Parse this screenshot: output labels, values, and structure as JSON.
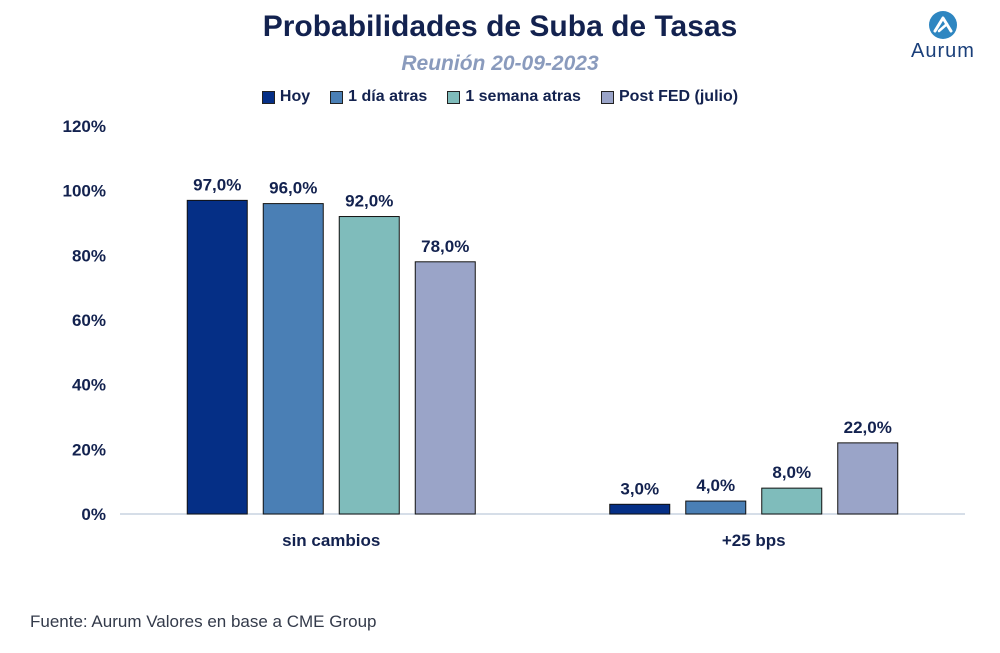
{
  "header": {
    "title": "Probabilidades de Suba de Tasas",
    "subtitle": "Reunión 20-09-2023"
  },
  "logo": {
    "text": "Aurum",
    "icon": "aurum-logo-icon",
    "color": "#2e86c1"
  },
  "footer": {
    "source": "Fuente: Aurum Valores en base a CME Group"
  },
  "chart_data": {
    "type": "bar",
    "title": "Probabilidades de Suba de Tasas",
    "subtitle": "Reunión 20-09-2023",
    "categories": [
      "sin cambios",
      "+25 bps"
    ],
    "series": [
      {
        "name": "Hoy",
        "values": [
          97.0,
          3.0
        ],
        "labels": [
          "97,0%",
          "3,0%"
        ],
        "color": "#052f86"
      },
      {
        "name": "1 día atras",
        "values": [
          96.0,
          4.0
        ],
        "labels": [
          "96,0%",
          "4,0%"
        ],
        "color": "#4a7fb5"
      },
      {
        "name": "1 semana atras",
        "values": [
          92.0,
          8.0
        ],
        "labels": [
          "92,0%",
          "8,0%"
        ],
        "color": "#7fbcbb"
      },
      {
        "name": "Post FED (julio)",
        "values": [
          78.0,
          22.0
        ],
        "labels": [
          "78,0%",
          "22,0%"
        ],
        "color": "#9aa4c8"
      }
    ],
    "ylim": [
      0,
      120
    ],
    "yticks": [
      "0%",
      "20%",
      "40%",
      "60%",
      "80%",
      "100%",
      "120%"
    ],
    "legend": "top-center",
    "grid": false
  }
}
